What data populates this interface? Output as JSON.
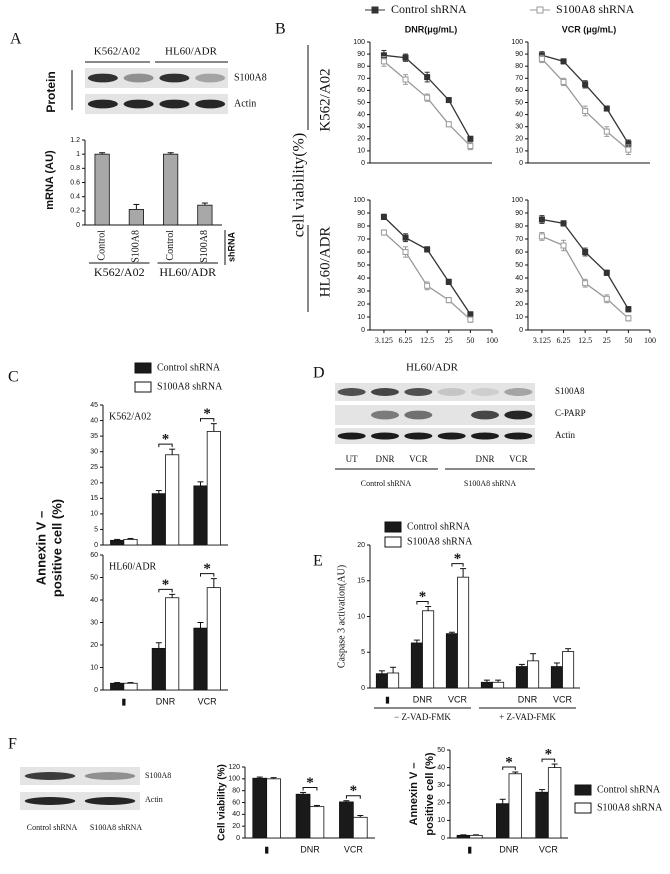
{
  "panel_labels": [
    "A",
    "B",
    "C",
    "D",
    "E",
    "F"
  ],
  "blots": {
    "A": {
      "groups": [
        "K562/A02",
        "HL60/ADR"
      ],
      "rows": [
        "S100A8",
        "Actin"
      ],
      "side_label": "Protein"
    },
    "D": {
      "title": "HL60/ADR",
      "rows": [
        "S100A8",
        "C-PARP",
        "Actin"
      ],
      "lanes": [
        "UT",
        "DNR",
        "VCR",
        null,
        "DNR",
        "VCR"
      ],
      "groups": [
        "Control shRNA",
        "S100A8 shRNA"
      ]
    },
    "F": {
      "rows": [
        "S100A8",
        "Actin"
      ],
      "lanes": [
        "Control shRNA",
        "S100A8 shRNA"
      ]
    }
  },
  "figure_B": {
    "ylabel": "cell viability(%)",
    "row_labels": [
      "K562/A02",
      "HL60/ADR"
    ]
  },
  "chart_data": [
    {
      "type": "bar",
      "ylabel": "mRNA (AU)",
      "categories": [
        "Control",
        "S100A8",
        "Control",
        "S100A8"
      ],
      "values": [
        1,
        0.22,
        1,
        0.28
      ],
      "errors": [
        0.02,
        0.07,
        0.02,
        0.03
      ],
      "color": "#a8a8a8",
      "ylim": [
        0,
        1.2
      ],
      "yticks": [
        0,
        0.2,
        0.4,
        0.6,
        0.8,
        1,
        1.2
      ],
      "group_labels": [
        "K562/A02",
        "HL60/ADR"
      ],
      "group_title": "shRNA"
    },
    {
      "type": "line",
      "title": "DNR(μg/mL)",
      "x": [
        3.125,
        6.25,
        12.5,
        25,
        50
      ],
      "xlim": [
        2,
        100
      ],
      "xscale": "log",
      "ylim": [
        0,
        100
      ],
      "yticks": [
        0,
        10,
        20,
        30,
        40,
        50,
        60,
        70,
        80,
        90,
        100
      ],
      "series": [
        {
          "name": "Control shRNA",
          "color": "#333333",
          "marker": "square-filled",
          "values": [
            89,
            87,
            71,
            52,
            20
          ],
          "errors": [
            4,
            3,
            4,
            2,
            2
          ]
        },
        {
          "name": "S100A8 shRNA",
          "color": "#999999",
          "marker": "square-open",
          "values": [
            84,
            69,
            54,
            32,
            14
          ],
          "errors": [
            4,
            4,
            3,
            2,
            3
          ]
        }
      ]
    },
    {
      "type": "line",
      "title": "VCR (μg/mL)",
      "x": [
        3.125,
        6.25,
        12.5,
        25,
        50
      ],
      "xlim": [
        2,
        100
      ],
      "xscale": "log",
      "ylim": [
        0,
        100
      ],
      "yticks": [
        0,
        10,
        20,
        30,
        40,
        50,
        60,
        70,
        80,
        90,
        100
      ],
      "series": [
        {
          "name": "Control shRNA",
          "color": "#333333",
          "marker": "square-filled",
          "values": [
            89,
            84,
            65,
            45,
            16
          ],
          "errors": [
            3,
            2,
            3,
            2,
            3
          ]
        },
        {
          "name": "S100A8 shRNA",
          "color": "#999999",
          "marker": "square-open",
          "values": [
            86,
            67,
            43,
            26,
            11
          ],
          "errors": [
            3,
            3,
            4,
            4,
            4
          ]
        }
      ]
    },
    {
      "type": "line",
      "x": [
        3.125,
        6.25,
        12.5,
        25,
        50
      ],
      "xlim": [
        2,
        100
      ],
      "xscale": "log",
      "xticks": [
        3.125,
        6.25,
        12.5,
        25,
        50,
        100
      ],
      "ylim": [
        0,
        100
      ],
      "yticks": [
        0,
        10,
        20,
        30,
        40,
        50,
        60,
        70,
        80,
        90,
        100
      ],
      "series": [
        {
          "name": "Control shRNA",
          "color": "#333333",
          "marker": "square-filled",
          "values": [
            87,
            71,
            62,
            37,
            12
          ],
          "errors": [
            2,
            3,
            2,
            2,
            2
          ]
        },
        {
          "name": "S100A8 shRNA",
          "color": "#999999",
          "marker": "square-open",
          "values": [
            75,
            60,
            34,
            23,
            8
          ],
          "errors": [
            2,
            4,
            3,
            2,
            2
          ]
        }
      ]
    },
    {
      "type": "line",
      "x": [
        3.125,
        6.25,
        12.5,
        25,
        50
      ],
      "xlim": [
        2,
        100
      ],
      "xscale": "log",
      "xticks": [
        3.125,
        6.25,
        12.5,
        25,
        50,
        100
      ],
      "ylim": [
        0,
        100
      ],
      "yticks": [
        0,
        10,
        20,
        30,
        40,
        50,
        60,
        70,
        80,
        90,
        100
      ],
      "series": [
        {
          "name": "Control shRNA",
          "color": "#333333",
          "marker": "square-filled",
          "values": [
            85,
            82,
            60,
            44,
            16
          ],
          "errors": [
            3,
            2,
            3,
            2,
            2
          ]
        },
        {
          "name": "S100A8 shRNA",
          "color": "#999999",
          "marker": "square-open",
          "values": [
            72,
            65,
            36,
            24,
            9
          ],
          "errors": [
            3,
            4,
            3,
            3,
            2
          ]
        }
      ]
    },
    {
      "type": "bar",
      "ylabel": [
        "Annexin V –",
        "positive cell (%)"
      ],
      "annotation": "K562/A02",
      "categories": [
        null,
        null,
        null
      ],
      "ylim": [
        0,
        45
      ],
      "yticks": [
        0,
        5,
        10,
        15,
        20,
        25,
        30,
        35,
        40,
        45
      ],
      "significance": [
        null,
        "*",
        "*"
      ],
      "series": [
        {
          "name": "Control shRNA",
          "color": "#1a1a1a",
          "values": [
            1.5,
            16.5,
            19
          ],
          "errors": [
            0.3,
            1,
            1.3
          ]
        },
        {
          "name": "S100A8 shRNA",
          "color": "#ffffff",
          "values": [
            1.8,
            29,
            36.5
          ],
          "errors": [
            0.3,
            1.8,
            2.5
          ]
        }
      ]
    },
    {
      "type": "bar",
      "annotation": "HL60/ADR",
      "categories": [
        "▮",
        "DNR",
        "VCR"
      ],
      "ylim": [
        0,
        60
      ],
      "yticks": [
        0,
        10,
        20,
        30,
        40,
        50,
        60
      ],
      "significance": [
        null,
        "*",
        "*"
      ],
      "series": [
        {
          "name": "Control shRNA",
          "color": "#1a1a1a",
          "values": [
            3,
            18.5,
            27.5
          ],
          "errors": [
            0.3,
            2.5,
            2.5
          ]
        },
        {
          "name": "S100A8 shRNA",
          "color": "#ffffff",
          "values": [
            3,
            41,
            45.5
          ],
          "errors": [
            0.3,
            1.5,
            4
          ]
        }
      ]
    },
    {
      "type": "bar",
      "ylabel": "Caspase 3 activation(AU)",
      "categories": [
        "▮",
        "DNR",
        "VCR",
        null,
        "DNR",
        "VCR"
      ],
      "ylim": [
        0,
        20
      ],
      "yticks": [
        0,
        5,
        10,
        15,
        20
      ],
      "significance": [
        null,
        "*",
        "*",
        null,
        null,
        null
      ],
      "group_labels": [
        "− Z-VAD-FMK",
        "+ Z-VAD-FMK"
      ],
      "series": [
        {
          "name": "Control shRNA",
          "color": "#1a1a1a",
          "values": [
            2,
            6.3,
            7.6,
            0.8,
            3,
            3
          ],
          "errors": [
            0.4,
            0.4,
            0.2,
            0.3,
            0.3,
            0.5
          ]
        },
        {
          "name": "S100A8 shRNA",
          "color": "#ffffff",
          "values": [
            2.1,
            10.8,
            15.5,
            0.8,
            3.8,
            5.1
          ],
          "errors": [
            0.8,
            0.6,
            1.2,
            0.3,
            1,
            0.4
          ]
        }
      ]
    },
    {
      "type": "bar",
      "ylabel": "Cell viability (%)",
      "categories": [
        "▮",
        "DNR",
        "VCR"
      ],
      "ylim": [
        0,
        120
      ],
      "yticks": [
        0,
        20,
        40,
        60,
        80,
        100,
        120
      ],
      "significance": [
        null,
        "*",
        "*"
      ],
      "series": [
        {
          "name": "Control shRNA",
          "color": "#1a1a1a",
          "values": [
            101,
            74,
            61
          ],
          "errors": [
            2,
            3,
            2
          ]
        },
        {
          "name": "S100A8 shRNA",
          "color": "#ffffff",
          "values": [
            100,
            53,
            35
          ],
          "errors": [
            2,
            2,
            3
          ]
        }
      ]
    },
    {
      "type": "bar",
      "ylabel": [
        "Annexin V –",
        "positive cell (%)"
      ],
      "categories": [
        "▮",
        "DNR",
        "VCR"
      ],
      "ylim": [
        0,
        50
      ],
      "yticks": [
        0,
        10,
        20,
        30,
        40,
        50
      ],
      "significance": [
        null,
        "*",
        "*"
      ],
      "series": [
        {
          "name": "Control shRNA",
          "color": "#1a1a1a",
          "values": [
            1.5,
            19.5,
            26
          ],
          "errors": [
            0.3,
            2.5,
            1.5
          ]
        },
        {
          "name": "S100A8 shRNA",
          "color": "#ffffff",
          "values": [
            1.5,
            36.5,
            40
          ],
          "errors": [
            0.3,
            1,
            2
          ]
        }
      ]
    }
  ]
}
